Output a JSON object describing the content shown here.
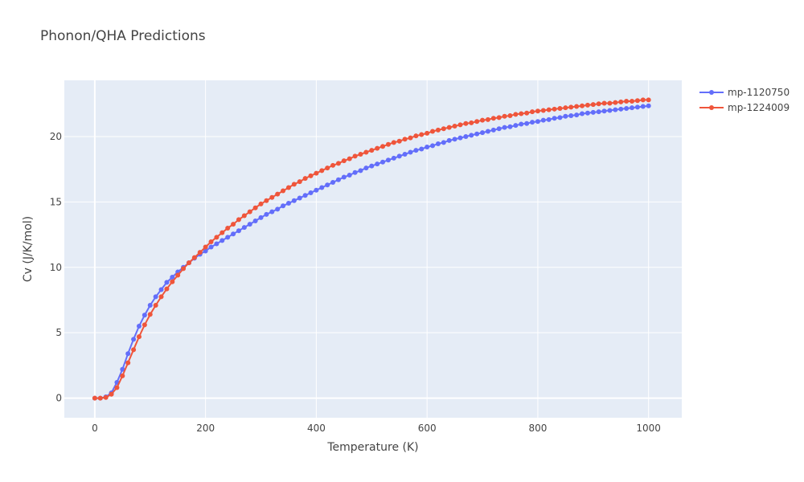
{
  "chart_data": {
    "type": "line",
    "title": "Phonon/QHA Predictions",
    "xlabel": "Temperature (K)",
    "ylabel": "Cv (J/K/mol)",
    "xlim": [
      -55,
      1060
    ],
    "ylim": [
      -1.5,
      24.3
    ],
    "xticks": [
      0,
      200,
      400,
      600,
      800,
      1000
    ],
    "yticks": [
      0,
      5,
      10,
      15,
      20
    ],
    "xtick_labels": [
      "0",
      "200",
      "400",
      "600",
      "800",
      "1000"
    ],
    "ytick_labels": [
      "0",
      "5",
      "10",
      "15",
      "20"
    ],
    "grid": true,
    "legend_position": "top-right",
    "background": "#e5ecf6",
    "series": [
      {
        "name": "mp-1120750",
        "color": "#636efa",
        "x": [
          0,
          10,
          20,
          30,
          40,
          50,
          60,
          70,
          80,
          90,
          100,
          110,
          120,
          130,
          140,
          150,
          160,
          170,
          180,
          190,
          200,
          210,
          220,
          230,
          240,
          250,
          260,
          270,
          280,
          290,
          300,
          310,
          320,
          330,
          340,
          350,
          360,
          370,
          380,
          390,
          400,
          410,
          420,
          430,
          440,
          450,
          460,
          470,
          480,
          490,
          500,
          510,
          520,
          530,
          540,
          550,
          560,
          570,
          580,
          590,
          600,
          610,
          620,
          630,
          640,
          650,
          660,
          670,
          680,
          690,
          700,
          710,
          720,
          730,
          740,
          750,
          760,
          770,
          780,
          790,
          800,
          810,
          820,
          830,
          840,
          850,
          860,
          870,
          880,
          890,
          900,
          910,
          920,
          930,
          940,
          950,
          960,
          970,
          980,
          990,
          1000
        ],
        "y": [
          0,
          0,
          0.1,
          0.4,
          1.2,
          2.2,
          3.4,
          4.5,
          5.5,
          6.35,
          7.1,
          7.75,
          8.3,
          8.85,
          9.25,
          9.65,
          10.0,
          10.35,
          10.7,
          11.0,
          11.25,
          11.55,
          11.8,
          12.05,
          12.3,
          12.55,
          12.8,
          13.05,
          13.3,
          13.55,
          13.8,
          14.05,
          14.25,
          14.45,
          14.7,
          14.9,
          15.1,
          15.3,
          15.5,
          15.7,
          15.9,
          16.1,
          16.3,
          16.5,
          16.7,
          16.9,
          17.05,
          17.25,
          17.4,
          17.6,
          17.75,
          17.9,
          18.05,
          18.2,
          18.35,
          18.5,
          18.65,
          18.8,
          18.95,
          19.05,
          19.2,
          19.3,
          19.45,
          19.55,
          19.7,
          19.8,
          19.9,
          20.0,
          20.1,
          20.2,
          20.3,
          20.4,
          20.5,
          20.6,
          20.7,
          20.75,
          20.85,
          20.95,
          21.0,
          21.1,
          21.15,
          21.25,
          21.3,
          21.4,
          21.45,
          21.55,
          21.6,
          21.65,
          21.75,
          21.8,
          21.85,
          21.9,
          21.95,
          22.0,
          22.05,
          22.1,
          22.15,
          22.2,
          22.25,
          22.3,
          22.35
        ]
      },
      {
        "name": "mp-1224009",
        "color": "#ef553b",
        "x": [
          0,
          10,
          20,
          30,
          40,
          50,
          60,
          70,
          80,
          90,
          100,
          110,
          120,
          130,
          140,
          150,
          160,
          170,
          180,
          190,
          200,
          210,
          220,
          230,
          240,
          250,
          260,
          270,
          280,
          290,
          300,
          310,
          320,
          330,
          340,
          350,
          360,
          370,
          380,
          390,
          400,
          410,
          420,
          430,
          440,
          450,
          460,
          470,
          480,
          490,
          500,
          510,
          520,
          530,
          540,
          550,
          560,
          570,
          580,
          590,
          600,
          610,
          620,
          630,
          640,
          650,
          660,
          670,
          680,
          690,
          700,
          710,
          720,
          730,
          740,
          750,
          760,
          770,
          780,
          790,
          800,
          810,
          820,
          830,
          840,
          850,
          860,
          870,
          880,
          890,
          900,
          910,
          920,
          930,
          940,
          950,
          960,
          970,
          980,
          990,
          1000
        ],
        "y": [
          0,
          0,
          0.05,
          0.3,
          0.8,
          1.7,
          2.7,
          3.7,
          4.7,
          5.6,
          6.4,
          7.1,
          7.75,
          8.35,
          8.9,
          9.4,
          9.9,
          10.35,
          10.75,
          11.15,
          11.55,
          11.95,
          12.3,
          12.65,
          13.0,
          13.3,
          13.65,
          13.95,
          14.25,
          14.55,
          14.85,
          15.1,
          15.35,
          15.6,
          15.85,
          16.1,
          16.35,
          16.55,
          16.8,
          17.0,
          17.2,
          17.4,
          17.6,
          17.8,
          17.95,
          18.15,
          18.3,
          18.5,
          18.65,
          18.8,
          18.95,
          19.1,
          19.25,
          19.4,
          19.55,
          19.65,
          19.8,
          19.9,
          20.05,
          20.15,
          20.25,
          20.4,
          20.5,
          20.6,
          20.7,
          20.8,
          20.9,
          21.0,
          21.05,
          21.15,
          21.25,
          21.3,
          21.4,
          21.45,
          21.55,
          21.6,
          21.7,
          21.75,
          21.8,
          21.9,
          21.95,
          22.0,
          22.05,
          22.1,
          22.15,
          22.2,
          22.25,
          22.3,
          22.35,
          22.4,
          22.45,
          22.5,
          22.55,
          22.55,
          22.6,
          22.65,
          22.7,
          22.7,
          22.75,
          22.8,
          22.8
        ]
      }
    ]
  }
}
